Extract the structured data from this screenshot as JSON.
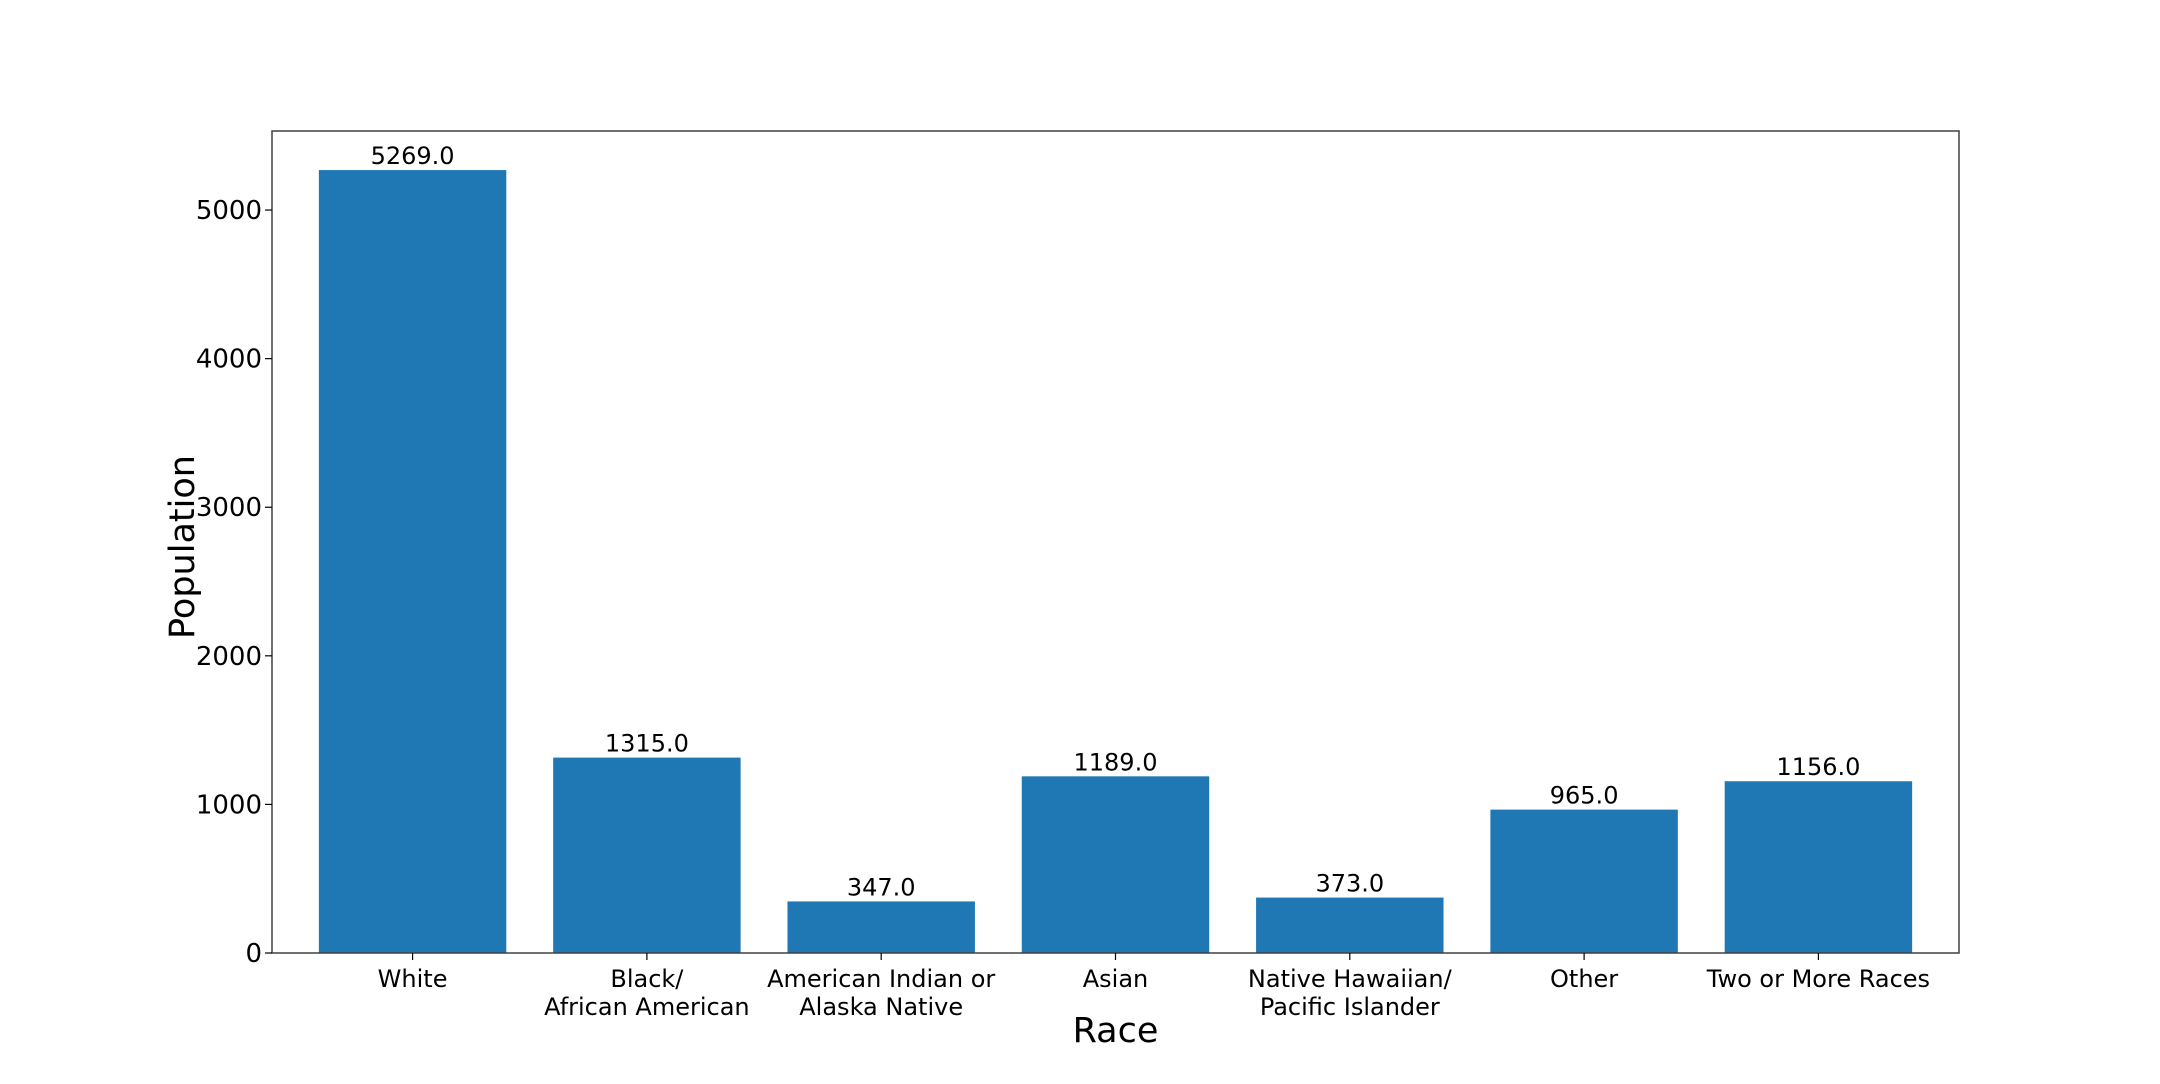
{
  "chart_data": {
    "type": "bar",
    "title": "",
    "xlabel": "Race",
    "ylabel": "Population",
    "categories": [
      [
        "White"
      ],
      [
        "Black/",
        "African American"
      ],
      [
        "American Indian or",
        "Alaska Native"
      ],
      [
        "Asian"
      ],
      [
        "Native Hawaiian/",
        "Pacific Islander"
      ],
      [
        "Other"
      ],
      [
        "Two or More Races"
      ]
    ],
    "values": [
      5269.0,
      1315.0,
      347.0,
      1189.0,
      373.0,
      965.0,
      1156.0
    ],
    "value_labels": [
      "5269.0",
      "1315.0",
      "347.0",
      "1189.0",
      "373.0",
      "965.0",
      "1156.0"
    ],
    "ylim": [
      0,
      5532
    ],
    "yticks": [
      0,
      1000,
      2000,
      3000,
      4000,
      5000
    ],
    "grid": false,
    "legend": "none",
    "bar_color": "#1f77b4"
  }
}
